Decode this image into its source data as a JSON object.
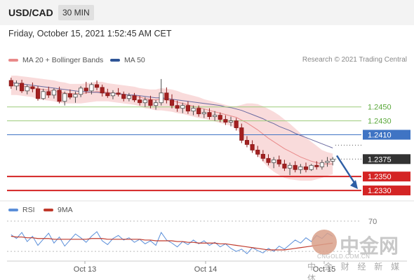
{
  "header": {
    "pair": "USD/CAD",
    "timeframe": "30 MIN",
    "datetime": "Friday, October 15, 2021 1:52:45 AM CET"
  },
  "legend": {
    "ma20_label": "MA 20 + Bollinger Bands",
    "ma50_label": "MA 50",
    "credit": "Research © 2021 Trading Central"
  },
  "rsi_legend": {
    "rsi_label": "RSI",
    "ma_label": "9MA"
  },
  "watermark": {
    "brand": "中金网",
    "url": "CNGOLD.COM.CN",
    "tagline": "中 金 财 经 新 媒 体"
  },
  "colors": {
    "ma20": "#e98a8a",
    "band": "#f6cccc",
    "ma50": "#2f5597",
    "level_green": "#9ccb7a",
    "level_blue": "#3f74c4",
    "level_red": "#d42424",
    "current_tag": "#333333",
    "arrow": "#2f5fa5",
    "rsi_line": "#5b8fd9",
    "rsi_ma": "#c0392b"
  },
  "chart_data": [
    {
      "type": "candlestick",
      "title": "USD/CAD 30 MIN",
      "x_ticks": [
        "Oct 13",
        "Oct 14",
        "Oct 15"
      ],
      "ylim": [
        1.2318,
        1.2505
      ],
      "series": [
        {
          "name": "MA 20 + Bollinger Bands",
          "type": "band"
        },
        {
          "name": "MA 50",
          "type": "line"
        }
      ],
      "ohlc": [
        [
          1.2488,
          1.2492,
          1.2476,
          1.248
        ],
        [
          1.248,
          1.2488,
          1.2474,
          1.2484
        ],
        [
          1.2484,
          1.2489,
          1.247,
          1.2473
        ],
        [
          1.2473,
          1.2482,
          1.2468,
          1.2479
        ],
        [
          1.2479,
          1.2485,
          1.2471,
          1.2476
        ],
        [
          1.2476,
          1.248,
          1.2459,
          1.2462
        ],
        [
          1.2462,
          1.2476,
          1.246,
          1.2472
        ],
        [
          1.2472,
          1.2479,
          1.2463,
          1.2467
        ],
        [
          1.2467,
          1.2477,
          1.2462,
          1.2474
        ],
        [
          1.2474,
          1.2479,
          1.2455,
          1.2458
        ],
        [
          1.2458,
          1.2472,
          1.2452,
          1.2469
        ],
        [
          1.2469,
          1.2475,
          1.2461,
          1.2464
        ],
        [
          1.2464,
          1.2472,
          1.2456,
          1.2468
        ],
        [
          1.2468,
          1.248,
          1.2464,
          1.2477
        ],
        [
          1.2477,
          1.2486,
          1.2469,
          1.2473
        ],
        [
          1.2473,
          1.2485,
          1.2468,
          1.2482
        ],
        [
          1.2482,
          1.2488,
          1.2474,
          1.2478
        ],
        [
          1.2478,
          1.2482,
          1.2465,
          1.247
        ],
        [
          1.247,
          1.2476,
          1.2463,
          1.2466
        ],
        [
          1.2466,
          1.2474,
          1.2461,
          1.247
        ],
        [
          1.247,
          1.2477,
          1.2465,
          1.2468
        ],
        [
          1.2468,
          1.2472,
          1.2458,
          1.2462
        ],
        [
          1.2462,
          1.247,
          1.2458,
          1.2466
        ],
        [
          1.2466,
          1.247,
          1.2457,
          1.246
        ],
        [
          1.246,
          1.2466,
          1.2452,
          1.2456
        ],
        [
          1.2456,
          1.2464,
          1.245,
          1.246
        ],
        [
          1.246,
          1.2466,
          1.2448,
          1.2452
        ],
        [
          1.2452,
          1.246,
          1.2446,
          1.2456
        ],
        [
          1.2456,
          1.249,
          1.2452,
          1.247
        ],
        [
          1.247,
          1.2478,
          1.2455,
          1.246
        ],
        [
          1.246,
          1.2468,
          1.2448,
          1.2452
        ],
        [
          1.2452,
          1.2459,
          1.2443,
          1.2448
        ],
        [
          1.2448,
          1.2456,
          1.2441,
          1.2452
        ],
        [
          1.2452,
          1.2458,
          1.244,
          1.2444
        ],
        [
          1.2444,
          1.2452,
          1.2438,
          1.2448
        ],
        [
          1.2448,
          1.2452,
          1.2436,
          1.244
        ],
        [
          1.244,
          1.2447,
          1.2434,
          1.2442
        ],
        [
          1.2442,
          1.2448,
          1.2432,
          1.2436
        ],
        [
          1.2436,
          1.2444,
          1.243,
          1.2438
        ],
        [
          1.2438,
          1.2442,
          1.2428,
          1.2432
        ],
        [
          1.2432,
          1.2438,
          1.2424,
          1.2428
        ],
        [
          1.2428,
          1.2436,
          1.2422,
          1.243
        ],
        [
          1.243,
          1.2434,
          1.2416,
          1.242
        ],
        [
          1.242,
          1.2426,
          1.2398,
          1.2402
        ],
        [
          1.2402,
          1.2408,
          1.2392,
          1.2396
        ],
        [
          1.2396,
          1.2402,
          1.2384,
          1.2388
        ],
        [
          1.2388,
          1.2394,
          1.2378,
          1.2382
        ],
        [
          1.2382,
          1.2388,
          1.2372,
          1.2376
        ],
        [
          1.2376,
          1.2382,
          1.2366,
          1.237
        ],
        [
          1.237,
          1.2378,
          1.2362,
          1.2374
        ],
        [
          1.2374,
          1.238,
          1.2364,
          1.2368
        ],
        [
          1.2368,
          1.2374,
          1.2358,
          1.2362
        ],
        [
          1.2362,
          1.237,
          1.2352,
          1.2366
        ],
        [
          1.2366,
          1.2372,
          1.2356,
          1.236
        ],
        [
          1.236,
          1.2368,
          1.2354,
          1.2364
        ],
        [
          1.2364,
          1.237,
          1.2356,
          1.236
        ],
        [
          1.236,
          1.2368,
          1.2358,
          1.2366
        ],
        [
          1.2366,
          1.2372,
          1.236,
          1.2364
        ],
        [
          1.2364,
          1.2374,
          1.236,
          1.237
        ],
        [
          1.237,
          1.2378,
          1.2364,
          1.2372
        ],
        [
          1.2372,
          1.2378,
          1.2366,
          1.2375
        ]
      ],
      "ma20": [
        1.2481,
        1.2481,
        1.248,
        1.2479,
        1.2478,
        1.2476,
        1.2475,
        1.2474,
        1.2473,
        1.2471,
        1.247,
        1.2469,
        1.2469,
        1.2469,
        1.247,
        1.2471,
        1.2472,
        1.2472,
        1.2471,
        1.247,
        1.2469,
        1.2468,
        1.2467,
        1.2466,
        1.2464,
        1.2462,
        1.2461,
        1.246,
        1.2461,
        1.246,
        1.2459,
        1.2457,
        1.2455,
        1.2453,
        1.2451,
        1.2449,
        1.2447,
        1.2445,
        1.2443,
        1.2441,
        1.2439,
        1.2437,
        1.2435,
        1.2431,
        1.2427,
        1.2422,
        1.2417,
        1.2411,
        1.2405,
        1.24,
        1.2395,
        1.239,
        1.2386,
        1.2382,
        1.2378,
        1.2375,
        1.2372,
        1.237,
        1.2368,
        1.2368,
        1.2368
      ],
      "band_width": [
        0.0014,
        0.0014,
        0.0014,
        0.0014,
        0.0014,
        0.0015,
        0.0015,
        0.0015,
        0.0015,
        0.0015,
        0.0015,
        0.0014,
        0.0014,
        0.0014,
        0.0014,
        0.0014,
        0.0014,
        0.0014,
        0.0013,
        0.0013,
        0.0013,
        0.0013,
        0.0013,
        0.0013,
        0.0013,
        0.0014,
        0.0014,
        0.0015,
        0.0016,
        0.0016,
        0.0016,
        0.0016,
        0.0015,
        0.0015,
        0.0015,
        0.0015,
        0.0014,
        0.0014,
        0.0014,
        0.0014,
        0.0014,
        0.0014,
        0.0016,
        0.0022,
        0.0028,
        0.0033,
        0.0037,
        0.004,
        0.0042,
        0.0043,
        0.0043,
        0.0042,
        0.004,
        0.0037,
        0.0034,
        0.0031,
        0.0028,
        0.0024,
        0.002,
        0.0017,
        0.0015
      ],
      "ma50": [
        1.2485,
        1.2484,
        1.2483,
        1.2482,
        1.2481,
        1.248,
        1.2479,
        1.2478,
        1.2477,
        1.2476,
        1.2475,
        1.2474,
        1.2473,
        1.2472,
        1.2472,
        1.2471,
        1.2471,
        1.247,
        1.247,
        1.2469,
        1.2469,
        1.2468,
        1.2467,
        1.2467,
        1.2466,
        1.2465,
        1.2464,
        1.2463,
        1.2463,
        1.2462,
        1.2461,
        1.246,
        1.2459,
        1.2458,
        1.2457,
        1.2456,
        1.2455,
        1.2454,
        1.2453,
        1.2452,
        1.245,
        1.2449,
        1.2447,
        1.2445,
        1.2442,
        1.2439,
        1.2436,
        1.2433,
        1.2429,
        1.2426,
        1.2422,
        1.2419,
        1.2416,
        1.2412,
        1.2409,
        1.2406,
        1.2403,
        1.24,
        1.2397,
        1.2394,
        1.2391
      ],
      "levels": [
        {
          "label": "1.2450",
          "value": 1.245,
          "kind": "resistance",
          "color": "green"
        },
        {
          "label": "1.2430",
          "value": 1.243,
          "kind": "resistance",
          "color": "green"
        },
        {
          "label": "1.2410",
          "value": 1.241,
          "kind": "pivot",
          "color": "blue"
        },
        {
          "label": "1.2375",
          "value": 1.2375,
          "kind": "current",
          "color": "dark"
        },
        {
          "label": "1.2350",
          "value": 1.235,
          "kind": "target",
          "color": "red"
        },
        {
          "label": "1.2330",
          "value": 1.233,
          "kind": "target",
          "color": "red"
        }
      ]
    },
    {
      "type": "line",
      "title": "RSI",
      "ylim": [
        20,
        80
      ],
      "y_ticks": [
        "70"
      ],
      "series": [
        {
          "name": "RSI",
          "values": [
            52,
            47,
            55,
            43,
            50,
            38,
            46,
            54,
            41,
            49,
            37,
            45,
            53,
            48,
            42,
            50,
            56,
            44,
            39,
            47,
            51,
            45,
            48,
            42,
            46,
            40,
            44,
            38,
            55,
            45,
            41,
            36,
            43,
            39,
            45,
            40,
            44,
            38,
            42,
            36,
            40,
            34,
            30,
            33,
            27,
            35,
            31,
            28,
            34,
            30,
            37,
            33,
            39,
            45,
            41,
            48,
            43,
            51,
            47,
            54,
            50
          ]
        },
        {
          "name": "9MA",
          "values": [
            50,
            49,
            49,
            48,
            48,
            47,
            47,
            47,
            46,
            46,
            46,
            46,
            46,
            46,
            46,
            47,
            47,
            47,
            46,
            46,
            46,
            46,
            46,
            46,
            46,
            45,
            45,
            44,
            44,
            44,
            44,
            43,
            43,
            42,
            42,
            41,
            41,
            41,
            41,
            40,
            40,
            39,
            38,
            37,
            36,
            35,
            34,
            33,
            32,
            32,
            32,
            32,
            33,
            34,
            35,
            36,
            37,
            38,
            39,
            40,
            41
          ]
        }
      ]
    }
  ]
}
